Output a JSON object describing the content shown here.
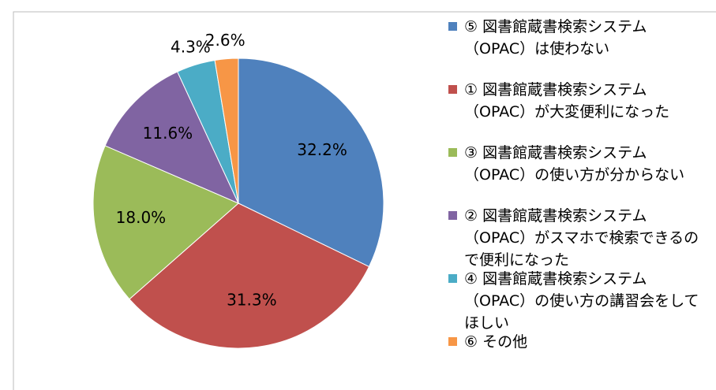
{
  "chart_data": {
    "type": "pie",
    "categories": [
      "⑤ 図書館蔵書検索システム（OPAC）は使わない",
      "① 図書館蔵書検索システム（OPAC）が大変便利になった",
      "③ 図書館蔵書検索システム（OPAC）の使い方が分からない",
      "② 図書館蔵書検索システム（OPAC）がスマホで検索できるので便利になった",
      "④ 図書館蔵書検索システム（OPAC）の使い方の講習会をしてほしい",
      "⑥ その他"
    ],
    "values": [
      32.2,
      31.3,
      18.0,
      11.6,
      4.3,
      2.6
    ],
    "value_labels": [
      "32.2%",
      "31.3%",
      "18.0%",
      "11.6%",
      "4.3%",
      "2.6%"
    ],
    "colors": [
      "#4f81bd",
      "#c0504d",
      "#9bbb59",
      "#8064a2",
      "#4bacc6",
      "#f79646"
    ],
    "legend": "right"
  }
}
